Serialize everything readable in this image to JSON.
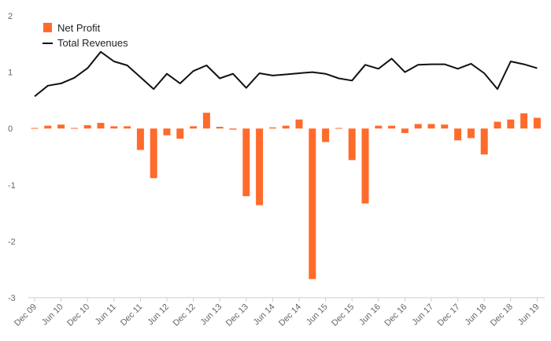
{
  "chart_data": {
    "type": "bar",
    "title": "",
    "xlabel": "",
    "ylabel": "",
    "ylim": [
      -3,
      2
    ],
    "yticks": [
      2,
      1,
      0,
      -1,
      -2,
      -3
    ],
    "grid": false,
    "legend_placement": "top-left",
    "colors": {
      "bar": "#ff6b2b",
      "line": "#111111",
      "axis": "#cccccc",
      "tick_text": "#666666"
    },
    "x_tick_labels": [
      "Dec 09",
      "Jun 10",
      "Dec 10",
      "Jun 11",
      "Dec 11",
      "Jun 12",
      "Dec 12",
      "Jun 13",
      "Dec 13",
      "Jun 14",
      "Dec 14",
      "Jun 15",
      "Dec 15",
      "Jun 16",
      "Dec 16",
      "Jun 17",
      "Dec 17",
      "Jun 18",
      "Dec 18",
      "Jun 19"
    ],
    "series": [
      {
        "name": "Net Profit",
        "type": "bar",
        "values": [
          0.01,
          0.05,
          0.07,
          0.01,
          0.06,
          0.1,
          0.04,
          0.04,
          -0.38,
          -0.88,
          -0.12,
          -0.18,
          0.04,
          0.28,
          0.03,
          -0.02,
          -1.2,
          -1.36,
          0.02,
          0.05,
          0.16,
          -2.67,
          -0.24,
          0.01,
          -0.56,
          -1.33,
          0.05,
          0.05,
          -0.08,
          0.08,
          0.08,
          0.07,
          -0.21,
          -0.17,
          -0.46,
          0.12,
          0.16,
          0.27,
          0.19
        ]
      },
      {
        "name": "Total Revenues",
        "type": "line",
        "values": [
          0.57,
          0.76,
          0.8,
          0.9,
          1.07,
          1.36,
          1.19,
          1.12,
          0.91,
          0.7,
          0.97,
          0.8,
          1.02,
          1.12,
          0.89,
          0.97,
          0.72,
          0.98,
          0.94,
          0.96,
          0.98,
          1.0,
          0.97,
          0.89,
          0.85,
          1.13,
          1.06,
          1.24,
          1.0,
          1.13,
          1.14,
          1.14,
          1.06,
          1.15,
          0.98,
          0.7,
          1.19,
          1.14,
          1.07
        ]
      }
    ]
  }
}
